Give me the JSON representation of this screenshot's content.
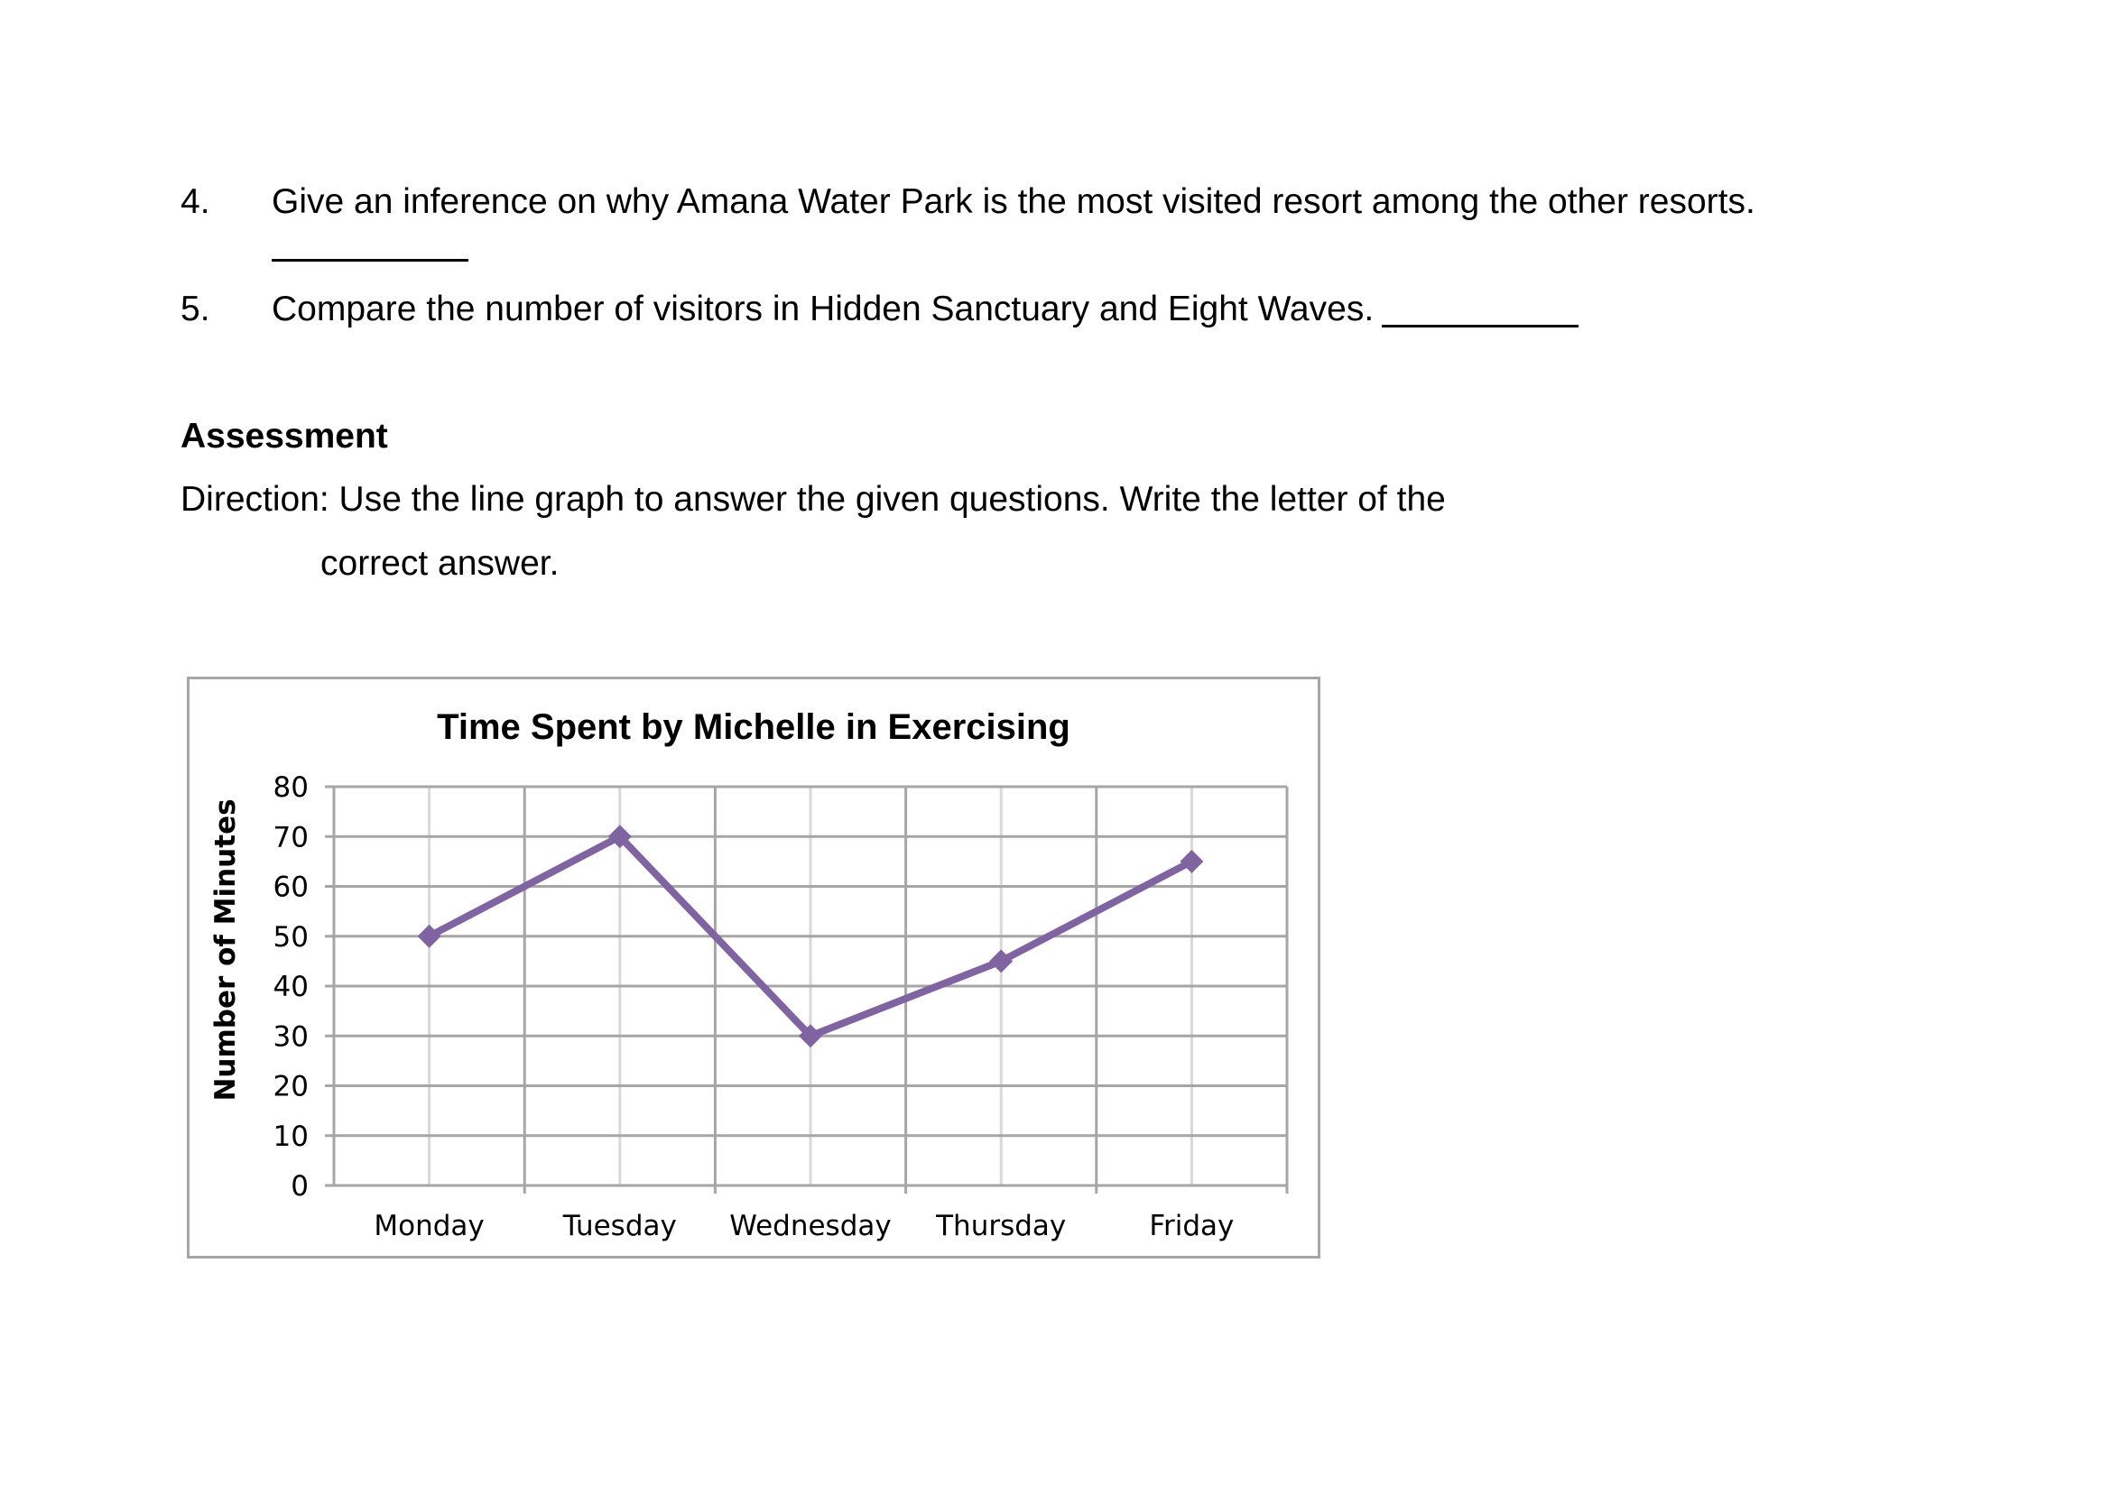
{
  "questions": [
    {
      "number": "4.",
      "text": "Give an inference on why Amana Water Park is the most visited resort among the other resorts.",
      "blank": "__________"
    },
    {
      "number": "5.",
      "text": "Compare the number of visitors in Hidden Sanctuary and Eight Waves.",
      "blank": "__________"
    }
  ],
  "assessment": {
    "heading": "Assessment",
    "direction_line1": "Direction: Use the line graph to answer the given questions. Write the letter of the",
    "direction_line2": "correct answer."
  },
  "colors": {
    "series": "#8064a2",
    "grid": "#a6a6a6",
    "minor_grid": "#d9d9d9"
  },
  "chart_data": {
    "type": "line",
    "title": "Time Spent by Michelle in Exercising",
    "xlabel": "",
    "ylabel": "Number of Minutes",
    "categories": [
      "Monday",
      "Tuesday",
      "Wednesday",
      "Thursday",
      "Friday"
    ],
    "series": [
      {
        "values": [
          50,
          70,
          30,
          45,
          65
        ],
        "marker": "diamond"
      }
    ],
    "ylim": [
      0,
      80
    ],
    "yticks": [
      "0",
      "10",
      "20",
      "30",
      "40",
      "50",
      "60",
      "70",
      "80"
    ],
    "grid": true,
    "legend": "none"
  }
}
